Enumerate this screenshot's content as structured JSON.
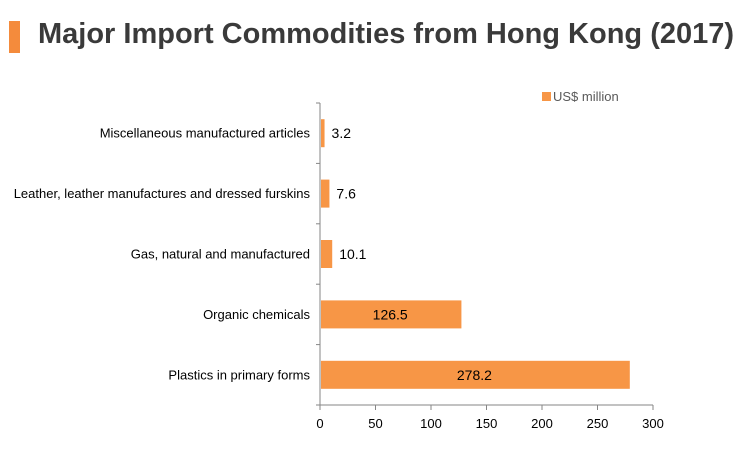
{
  "title": "Major Import Commodities from Hong Kong (2017)",
  "colors": {
    "accent": "#f48b3c",
    "bar": "#f79646",
    "axis": "#868686",
    "title": "#3a3a3a"
  },
  "chart_data": {
    "type": "bar",
    "orientation": "horizontal",
    "title": "Major Import Commodities from Hong Kong (2017)",
    "categories": [
      "Miscellaneous manufactured articles",
      "Leather, leather manufactures and dressed furskins",
      "Gas, natural and manufactured",
      "Organic chemicals",
      "Plastics in primary forms"
    ],
    "series": [
      {
        "name": "US$ million",
        "values": [
          3.2,
          7.6,
          10.1,
          126.5,
          278.2
        ]
      }
    ],
    "data_labels": [
      "3.2",
      "7.6",
      "10.1",
      "126.5",
      "278.2"
    ],
    "xlim": [
      0,
      300
    ],
    "xticks": [
      0,
      50,
      100,
      150,
      200,
      250,
      300
    ],
    "legend_position": "top-right",
    "grid": false,
    "xlabel": "",
    "ylabel": ""
  }
}
